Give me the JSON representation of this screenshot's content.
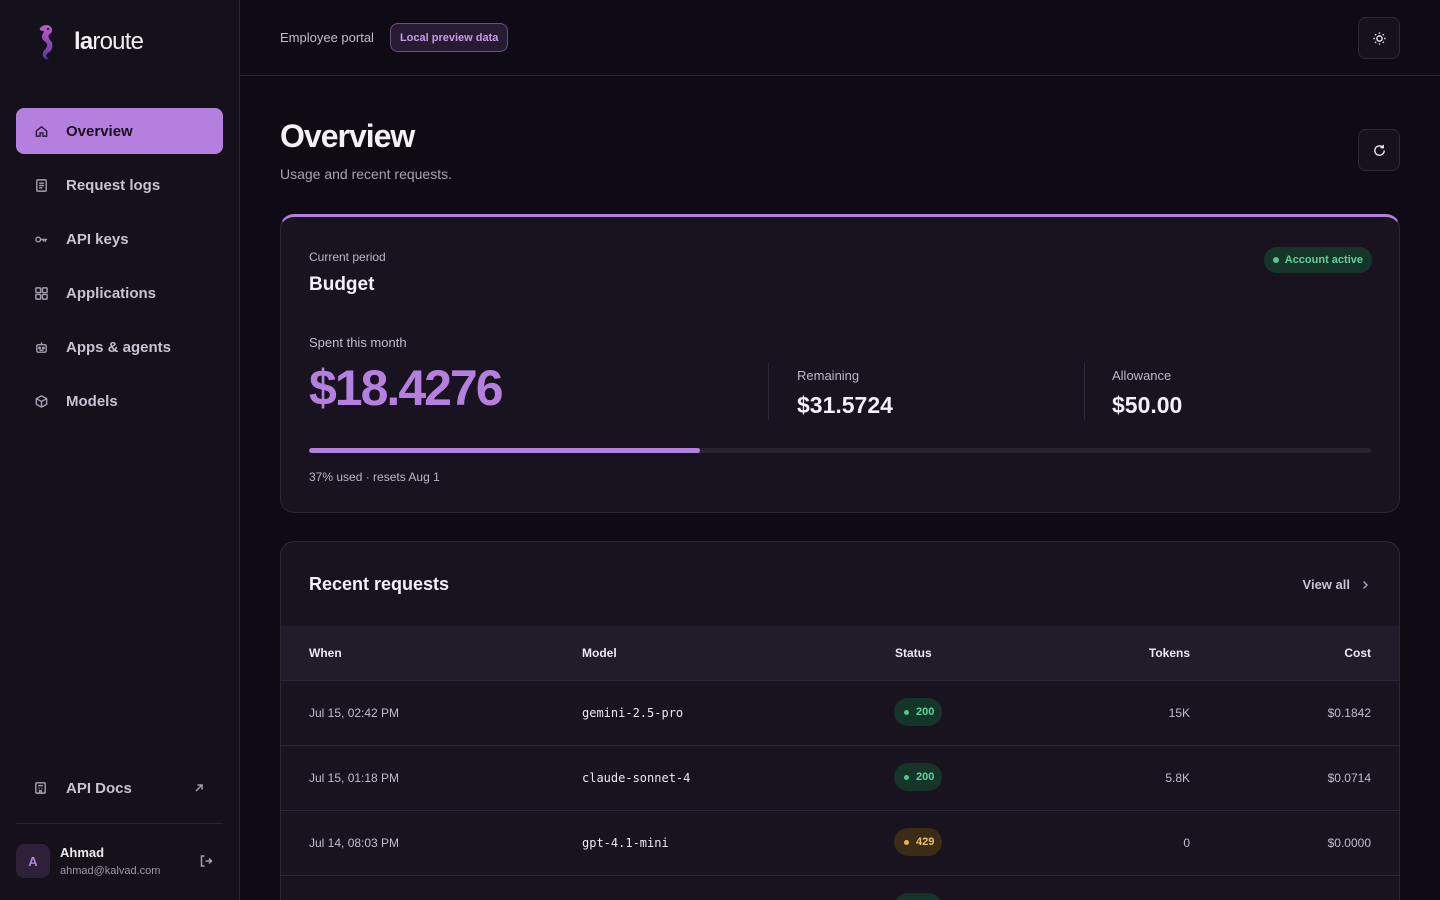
{
  "brand": {
    "name_bold": "la",
    "name_rest": "route"
  },
  "sidebar": {
    "items": [
      {
        "label": "Overview",
        "icon": "home-icon"
      },
      {
        "label": "Request logs",
        "icon": "document-icon"
      },
      {
        "label": "API keys",
        "icon": "key-icon"
      },
      {
        "label": "Applications",
        "icon": "grid-icon"
      },
      {
        "label": "Apps & agents",
        "icon": "robot-icon"
      },
      {
        "label": "Models",
        "icon": "cube-icon"
      }
    ],
    "docs_label": "API Docs",
    "user": {
      "initial": "A",
      "name": "Ahmad",
      "email": "ahmad@kalvad.com"
    }
  },
  "topbar": {
    "portal": "Employee portal",
    "preview_badge": "Local preview data"
  },
  "page": {
    "title": "Overview",
    "subtitle": "Usage and recent requests."
  },
  "budget": {
    "period_label": "Current period",
    "title": "Budget",
    "status": "Account active",
    "spent_label": "Spent this month",
    "spent": "$18.4276",
    "remaining_label": "Remaining",
    "remaining": "$31.5724",
    "allowance_label": "Allowance",
    "allowance": "$50.00",
    "used_fraction": 0.3685,
    "note": "37% used · resets Aug 1"
  },
  "recent": {
    "title": "Recent requests",
    "view_all": "View all",
    "columns": {
      "when": "When",
      "model": "Model",
      "status": "Status",
      "tokens": "Tokens",
      "cost": "Cost"
    },
    "rows": [
      {
        "when": "Jul 15, 02:42 PM",
        "model": "gemini-2.5-pro",
        "status": "200",
        "tokens": "15K",
        "cost": "$0.1842"
      },
      {
        "when": "Jul 15, 01:18 PM",
        "model": "claude-sonnet-4",
        "status": "200",
        "tokens": "5.8K",
        "cost": "$0.0714"
      },
      {
        "when": "Jul 14, 08:03 PM",
        "model": "gpt-4.1-mini",
        "status": "429",
        "tokens": "0",
        "cost": "$0.0000"
      }
    ]
  },
  "colors": {
    "accent": "#b57fe0",
    "success": "#4fc98c",
    "warning": "#e8b44c"
  }
}
